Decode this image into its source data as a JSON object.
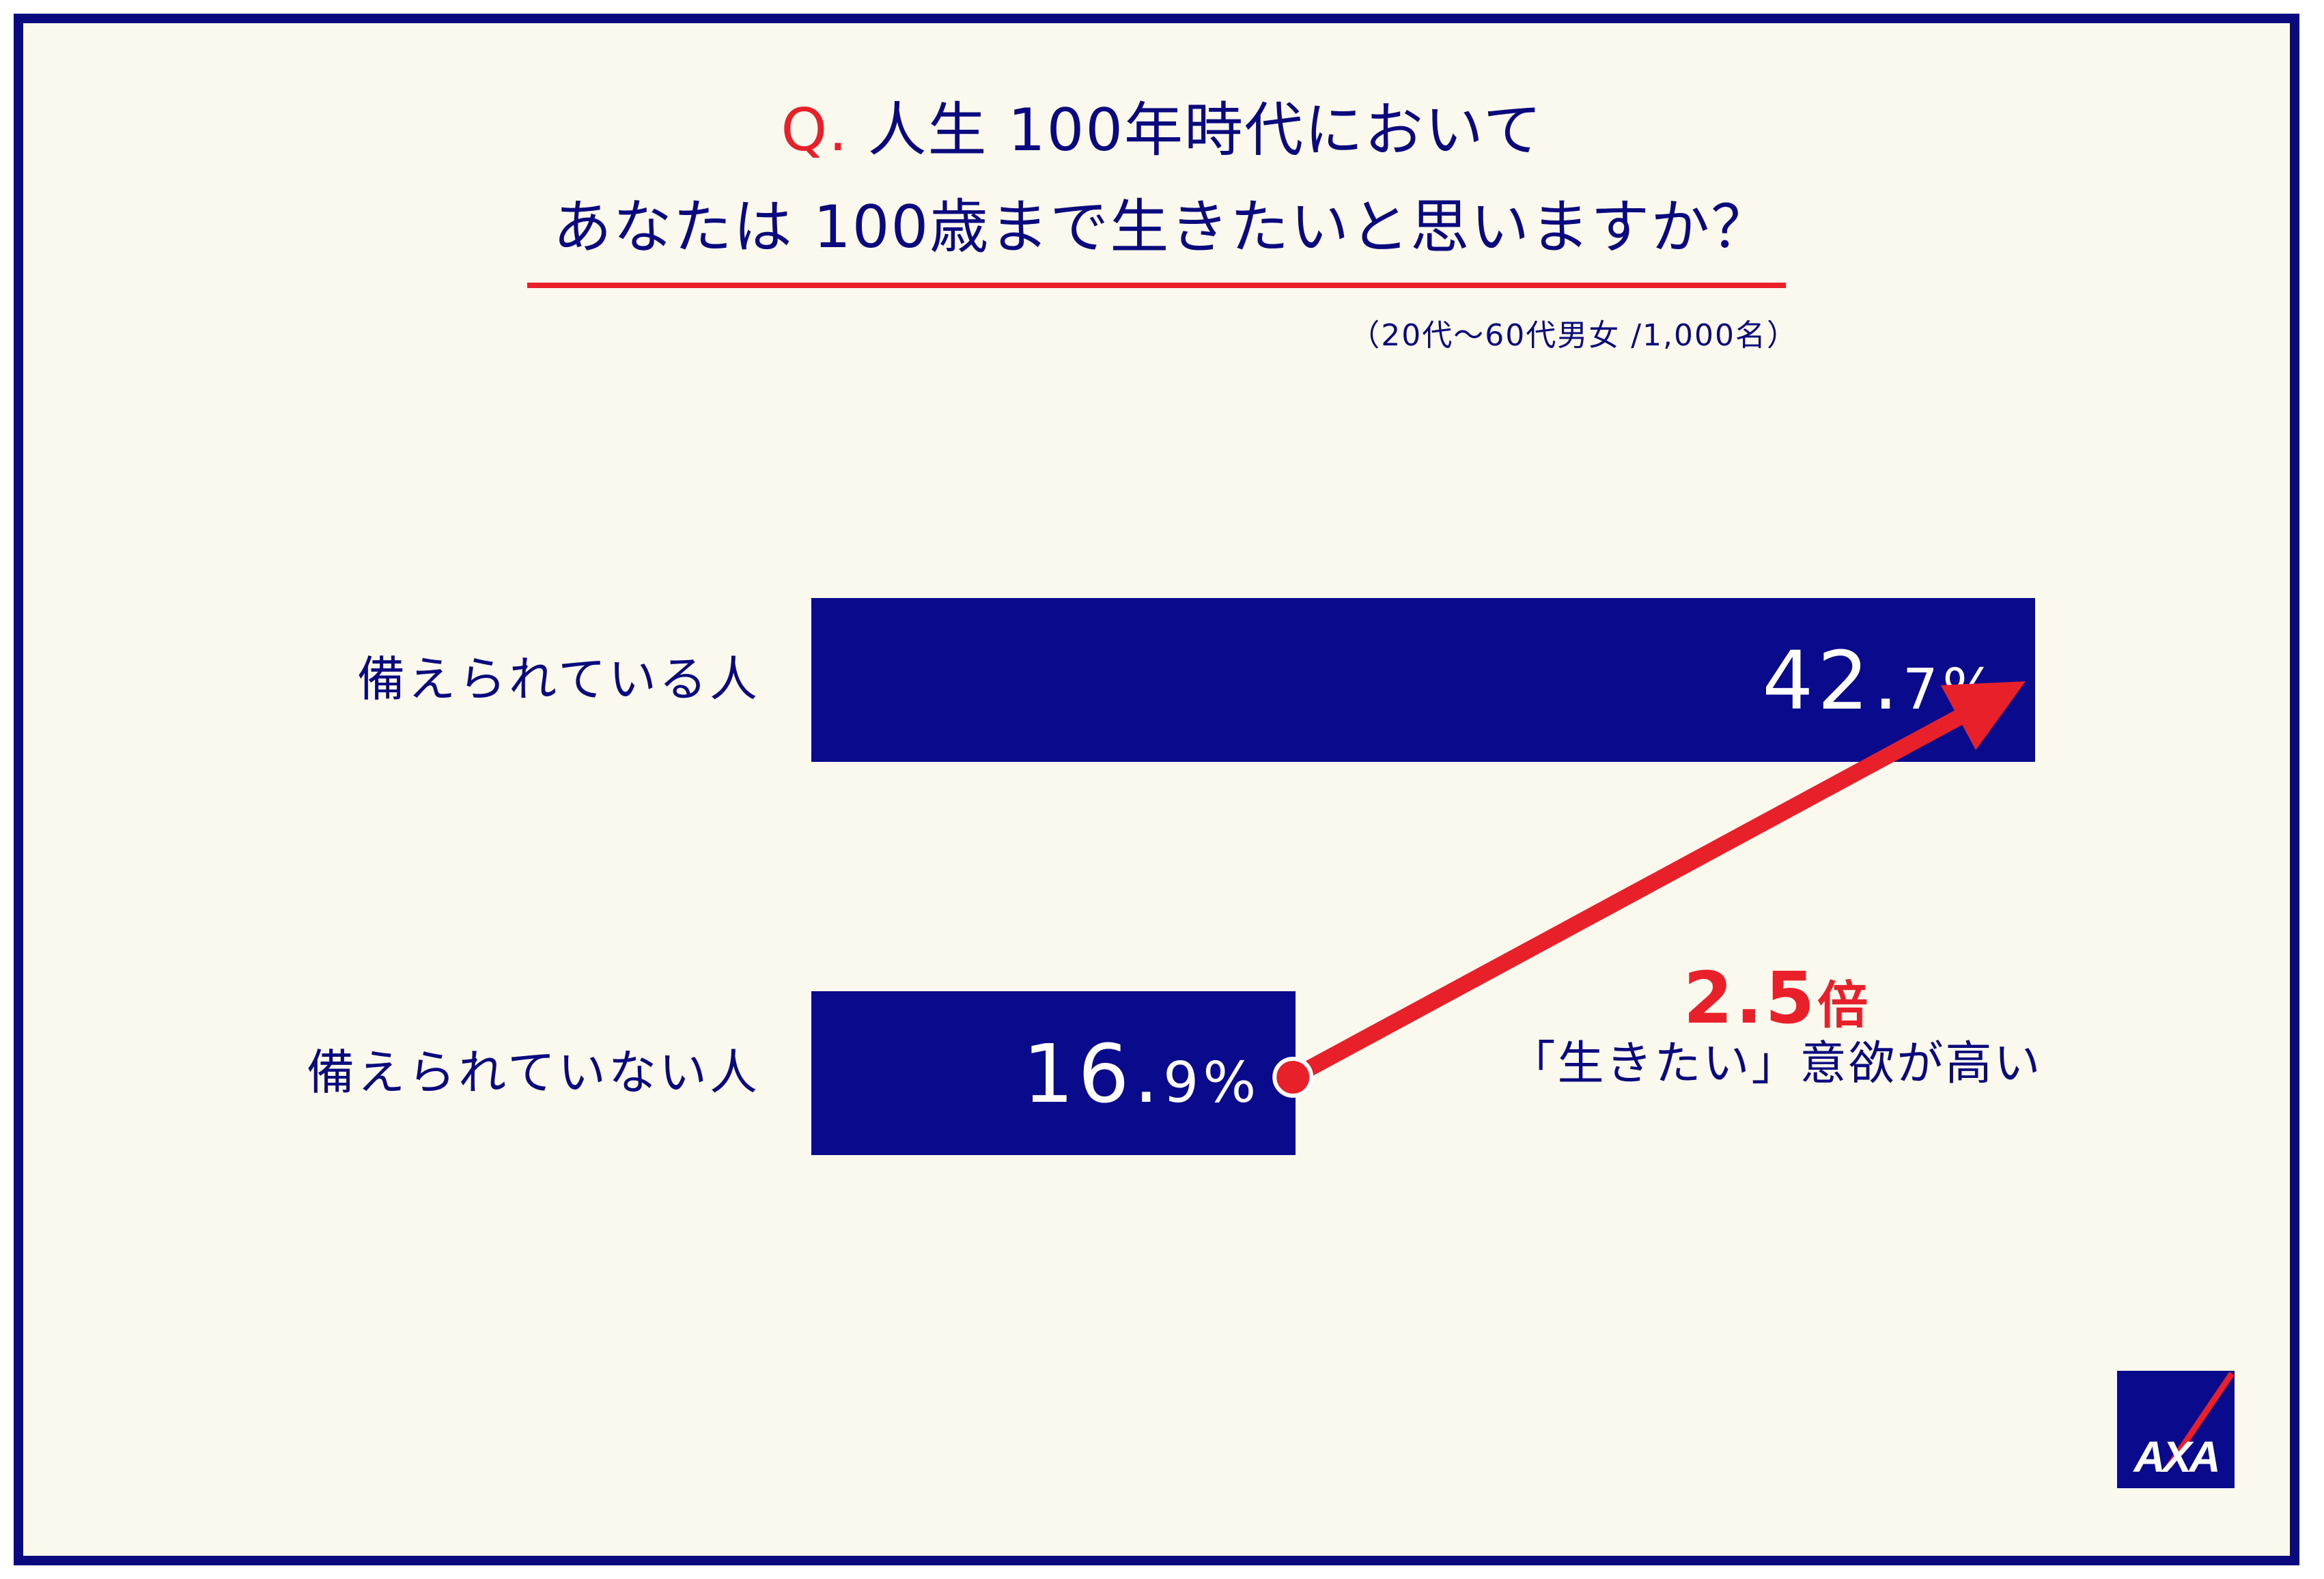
{
  "title": {
    "q_mark": "Q.",
    "line1": "人生 100年時代において",
    "line2": "あなたは 100歳まで生きたいと思いますか？"
  },
  "sample_note": "（20代〜60代男女 /1,000名）",
  "annotation": {
    "ratio_value": "2.5",
    "ratio_unit": "倍",
    "text": "「生きたい」意欲が高い"
  },
  "logo": {
    "text": "AXA"
  },
  "colors": {
    "navy": "#0a0a8c",
    "red": "#e8202a",
    "background": "#fbf9ee"
  },
  "chart_data": {
    "type": "bar",
    "orientation": "horizontal",
    "categories": [
      "備えられている人",
      "備えられていない人"
    ],
    "values": [
      42.7,
      16.9
    ],
    "value_labels": [
      {
        "major": "42.",
        "minor": "7%"
      },
      {
        "major": "16.",
        "minor": "9%"
      }
    ],
    "unit": "%",
    "title": "人生 100年時代において あなたは 100歳まで生きたいと思いますか？",
    "xlabel": "",
    "ylabel": "",
    "grid": false,
    "legend": "none"
  }
}
